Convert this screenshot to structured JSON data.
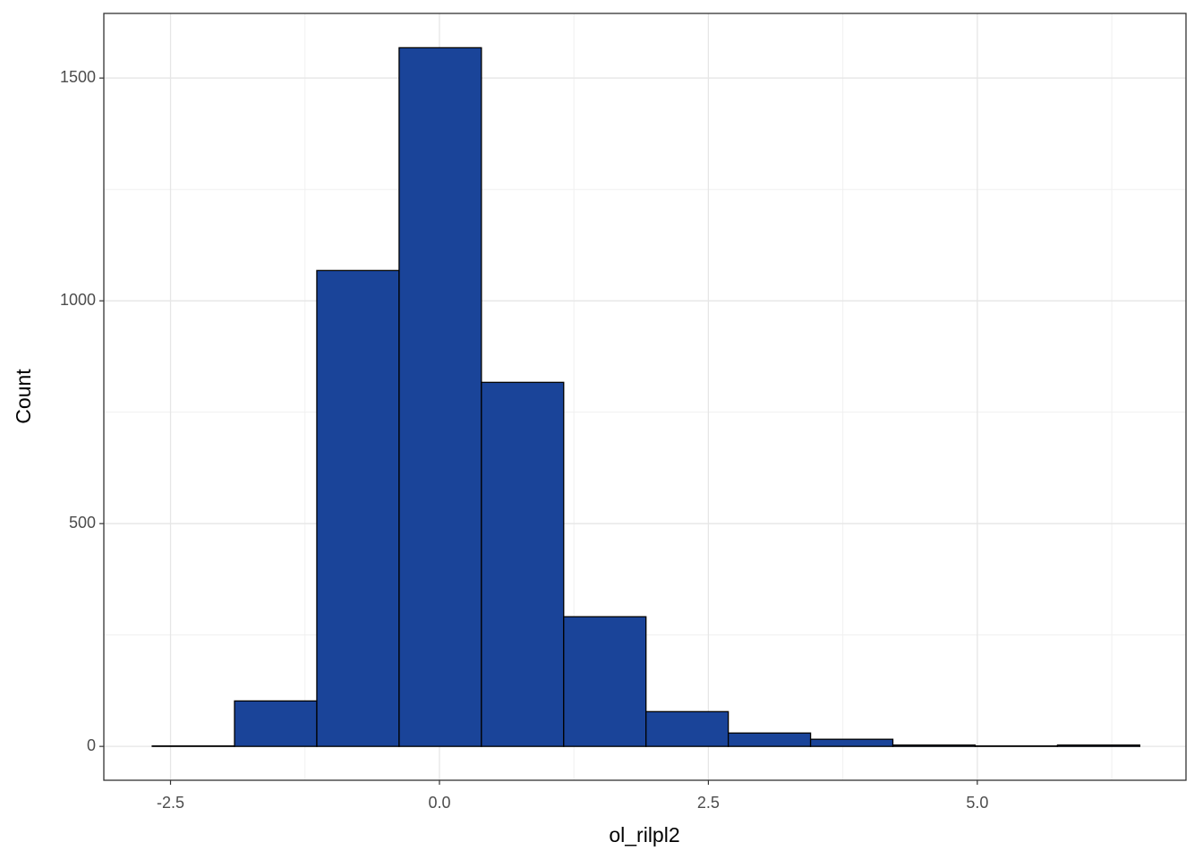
{
  "chart_data": {
    "type": "histogram",
    "x_label": "ol_rilpl2",
    "y_label": "Count",
    "bins": [
      -2.67,
      -1.905,
      -1.14,
      -0.375,
      0.39,
      1.155,
      1.92,
      2.685,
      3.45,
      4.215,
      4.98,
      5.745,
      6.51
    ],
    "counts": [
      1,
      102,
      1068,
      1568,
      817,
      291,
      78,
      30,
      16,
      3,
      1,
      3
    ],
    "color": "#1a4499",
    "xlim": [
      -3.12,
      6.94
    ],
    "ylim": [
      -76,
      1645
    ],
    "xticks": [
      -2.5,
      {
        "value": 0,
        "label": "0.0"
      },
      2.5,
      {
        "value": 5,
        "label": "5.0"
      }
    ],
    "yticks": [
      0,
      500,
      1000,
      1500
    ],
    "grid": true
  }
}
